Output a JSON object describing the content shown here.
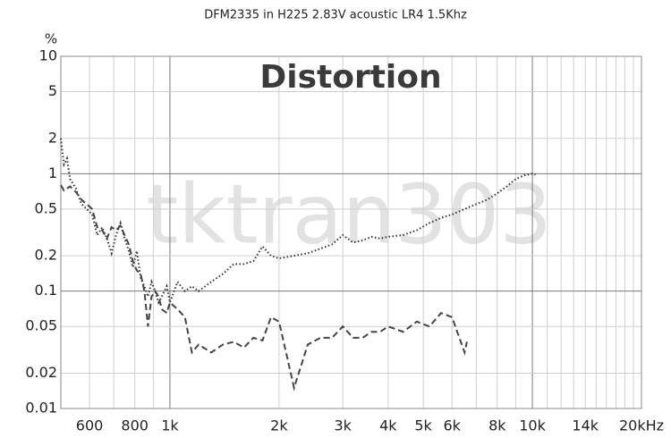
{
  "chart_data": {
    "type": "line",
    "title": "DFM2335 in H225 2.83V acoustic LR4 1.5Khz",
    "annotation": "Distortion",
    "watermark": "tktran303",
    "y_label": "%",
    "x_scale": "log",
    "y_scale": "log",
    "grid": true,
    "xlim": [
      500,
      20000
    ],
    "ylim": [
      0.01,
      10
    ],
    "xticks": [
      600,
      800,
      {
        "value": 1000,
        "label": "1k"
      },
      {
        "value": 2000,
        "label": "2k"
      },
      {
        "value": 3000,
        "label": "3k"
      },
      {
        "value": 4000,
        "label": "4k"
      },
      {
        "value": 5000,
        "label": "5k"
      },
      {
        "value": 6000,
        "label": "6k"
      },
      {
        "value": 8000,
        "label": "8k"
      },
      {
        "value": 10000,
        "label": "10k"
      },
      {
        "value": 14000,
        "label": "14k"
      },
      {
        "value": 20000,
        "label": "20kHz"
      }
    ],
    "xgrid": [
      500,
      600,
      700,
      800,
      900,
      1000,
      2000,
      3000,
      4000,
      5000,
      6000,
      7000,
      8000,
      9000,
      10000,
      11000,
      12000,
      13000,
      14000,
      15000,
      16000,
      17000,
      18000,
      19000,
      20000
    ],
    "yticks": [
      0.01,
      0.02,
      0.05,
      0.1,
      0.2,
      0.5,
      1,
      2,
      5,
      10
    ],
    "series": [
      {
        "color": "#333333",
        "dash": "dotted",
        "x": [
          500,
          510,
          520,
          530,
          550,
          570,
          590,
          610,
          630,
          650,
          670,
          690,
          710,
          730,
          750,
          770,
          790,
          810,
          830,
          850,
          870,
          890,
          910,
          930,
          950,
          980,
          1000,
          1050,
          1100,
          1150,
          1200,
          1300,
          1400,
          1500,
          1600,
          1700,
          1800,
          1900,
          2000,
          2200,
          2400,
          2600,
          2800,
          3000,
          3200,
          3400,
          3600,
          3800,
          4000,
          4400,
          4800,
          5200,
          5600,
          6000,
          6500,
          7000,
          7500,
          8000,
          8500,
          9000,
          9500,
          10000,
          10200
        ],
        "values": [
          2,
          1.2,
          1.35,
          0.9,
          0.75,
          0.55,
          0.5,
          0.45,
          0.3,
          0.35,
          0.28,
          0.21,
          0.3,
          0.38,
          0.28,
          0.22,
          0.16,
          0.22,
          0.13,
          0.11,
          0.09,
          0.12,
          0.1,
          0.08,
          0.09,
          0.11,
          0.08,
          0.12,
          0.1,
          0.11,
          0.1,
          0.12,
          0.14,
          0.17,
          0.17,
          0.18,
          0.24,
          0.2,
          0.19,
          0.2,
          0.21,
          0.23,
          0.25,
          0.3,
          0.26,
          0.27,
          0.29,
          0.28,
          0.29,
          0.3,
          0.33,
          0.38,
          0.42,
          0.45,
          0.5,
          0.55,
          0.6,
          0.68,
          0.78,
          0.9,
          0.97,
          1.0,
          0.98
        ]
      },
      {
        "color": "#444444",
        "dash": "dashed",
        "x": [
          500,
          510,
          520,
          530,
          550,
          570,
          590,
          610,
          630,
          650,
          670,
          690,
          710,
          730,
          750,
          770,
          790,
          810,
          830,
          850,
          870,
          890,
          910,
          930,
          950,
          980,
          1000,
          1050,
          1100,
          1150,
          1200,
          1300,
          1400,
          1500,
          1600,
          1700,
          1800,
          1900,
          2000,
          2200,
          2400,
          2600,
          2800,
          3000,
          3200,
          3400,
          3600,
          3800,
          4000,
          4400,
          4800,
          5200,
          5600,
          6000,
          6500,
          6600
        ],
        "values": [
          0.8,
          0.72,
          0.75,
          0.78,
          0.7,
          0.6,
          0.55,
          0.5,
          0.35,
          0.33,
          0.28,
          0.35,
          0.33,
          0.36,
          0.3,
          0.25,
          0.18,
          0.15,
          0.14,
          0.1,
          0.05,
          0.09,
          0.1,
          0.09,
          0.07,
          0.065,
          0.08,
          0.07,
          0.06,
          0.03,
          0.035,
          0.03,
          0.035,
          0.037,
          0.033,
          0.04,
          0.038,
          0.06,
          0.055,
          0.015,
          0.035,
          0.04,
          0.04,
          0.05,
          0.04,
          0.04,
          0.045,
          0.045,
          0.05,
          0.045,
          0.055,
          0.05,
          0.065,
          0.06,
          0.03,
          0.037
        ]
      }
    ]
  }
}
